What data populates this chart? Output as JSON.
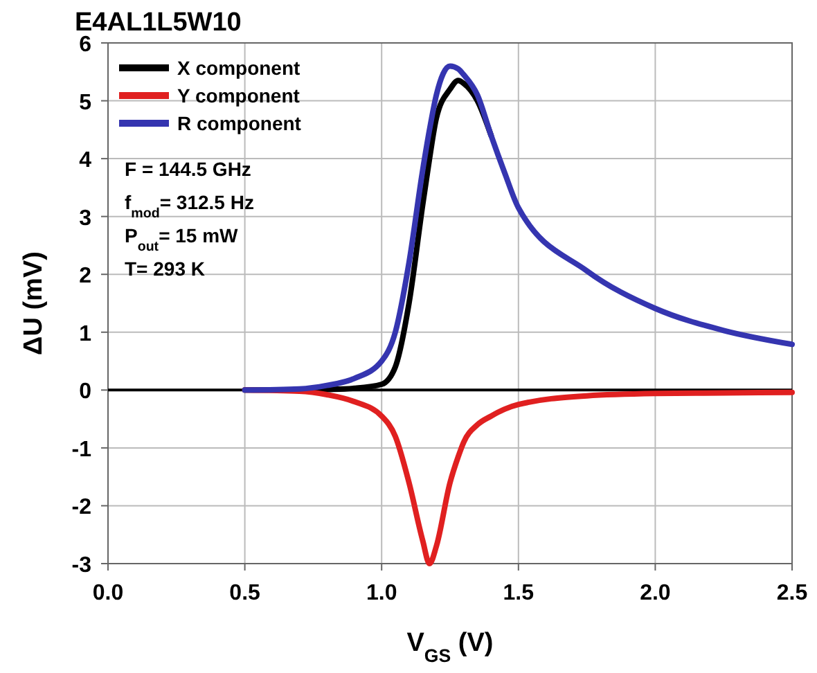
{
  "chart_data": {
    "type": "line",
    "title": "E4AL1L5W10",
    "xlabel": "V$_{GS}$ (V)",
    "ylabel": "ΔU (mV)",
    "xlim": [
      0,
      2.5
    ],
    "ylim": [
      -3,
      6
    ],
    "xticks": [
      {
        "value": 0,
        "label": "0.0"
      },
      0.5,
      {
        "value": 1,
        "label": "1.0"
      },
      1.5,
      {
        "value": 2,
        "label": "2.0"
      },
      2.5
    ],
    "yticks": [
      -3,
      -2,
      -1,
      0,
      1,
      2,
      3,
      4,
      5,
      6
    ],
    "grid": true,
    "legend": "top left",
    "line_style": "solid",
    "ref_lines": [
      {
        "axis": "y",
        "value": 0,
        "color": "#000000"
      }
    ],
    "annotations": [
      "F = 144.5 GHz",
      "f$_{mod}$= 312.5 Hz",
      "P$_{out}$= 15 mW",
      "T= 293 K"
    ],
    "x": [
      0.5,
      0.7,
      0.8,
      0.9,
      1.0,
      1.05,
      1.1,
      1.15,
      1.175,
      1.2,
      1.25,
      1.28,
      1.3,
      1.35,
      1.4,
      1.45,
      1.5,
      1.75,
      2.0,
      2.25,
      2.5
    ],
    "series": [
      {
        "name": "X component",
        "color": "#000000",
        "values": [
          0,
          0,
          0.01,
          0.03,
          0.1,
          0.4,
          1.5,
          3.2,
          4.0,
          4.7,
          5.2,
          5.35,
          5.3,
          5.0,
          4.4,
          null,
          null,
          null,
          null,
          null,
          null
        ]
      },
      {
        "name": "Y component",
        "color": "#e02020",
        "values": [
          0,
          -0.02,
          -0.08,
          -0.2,
          -0.45,
          -0.8,
          -1.6,
          -2.6,
          -3.0,
          -2.7,
          -1.6,
          -1.15,
          -0.9,
          -0.6,
          -0.45,
          -0.33,
          -0.25,
          -0.1,
          -0.06,
          -0.05,
          -0.04
        ]
      },
      {
        "name": "R component",
        "color": "#3535b0",
        "values": [
          0,
          0.02,
          0.08,
          0.2,
          0.5,
          1.0,
          2.2,
          3.8,
          4.5,
          5.1,
          5.6,
          5.55,
          5.45,
          5.1,
          4.4,
          3.75,
          3.15,
          2.06,
          1.41,
          1.03,
          0.79
        ]
      }
    ]
  }
}
